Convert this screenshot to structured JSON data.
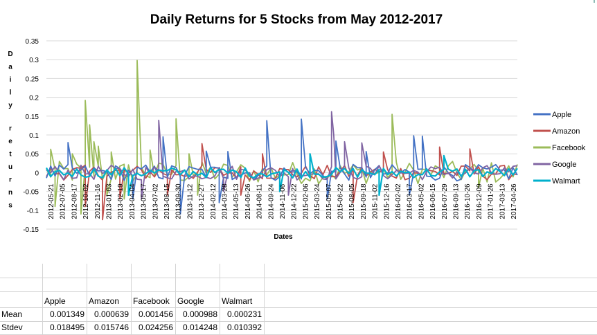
{
  "chart_data": {
    "type": "line",
    "title": "Daily Returns for 5 Stocks from May 2012-2017",
    "xlabel": "Dates",
    "ylabel": "Daily returns",
    "ylim": [
      -0.15,
      0.35
    ],
    "yticks": [
      "0.35",
      "0.3",
      "0.25",
      "0.2",
      "0.15",
      "0.1",
      "0.05",
      "0",
      "-0.05",
      "-0.1",
      "-0.15"
    ],
    "xticks": [
      "2012-05-21",
      "2012-07-05",
      "2012-08-17",
      "2012-10-02",
      "2012-11-16",
      "2013-01-03",
      "2013-02-19",
      "2013-04-04",
      "2013-05-17",
      "2013-07-02",
      "2013-08-15",
      "2013-09-30",
      "2013-11-12",
      "2013-12-27",
      "2014-02-12",
      "2014-03-28",
      "2014-05-13",
      "2014-06-26",
      "2014-08-11",
      "2014-09-24",
      "2014-11-06",
      "2014-12-22",
      "2015-02-06",
      "2015-03-24",
      "2015-05-07",
      "2015-06-22",
      "2015-08-05",
      "2015-09-18",
      "2015-11-02",
      "2015-12-16",
      "2016-02-02",
      "2016-03-17",
      "2016-05-02",
      "2016-06-15",
      "2016-07-29",
      "2016-09-13",
      "2016-10-26",
      "2016-12-09",
      "2017-01-26",
      "2017-03-13",
      "2017-04-26"
    ],
    "legend_position": "right",
    "grid": true,
    "series": [
      {
        "name": "Apple",
        "color": "#4472c4",
        "spikes": [
          [
            5,
            0.08
          ],
          [
            20,
            -0.07
          ],
          [
            27,
            0.095
          ],
          [
            37,
            0.057
          ],
          [
            42,
            0.056
          ],
          [
            51,
            0.138
          ],
          [
            59,
            0.142
          ],
          [
            67,
            0.084
          ],
          [
            74,
            0.056
          ],
          [
            85,
            0.098
          ],
          [
            87,
            0.097
          ],
          [
            31,
            -0.11
          ],
          [
            40,
            -0.08
          ],
          [
            65,
            -0.07
          ],
          [
            84,
            -0.06
          ]
        ]
      },
      {
        "name": "Amazon",
        "color": "#c0504d",
        "spikes": [
          [
            13,
            -0.125
          ],
          [
            17,
            -0.07
          ],
          [
            36,
            0.077
          ],
          [
            50,
            0.05
          ],
          [
            71,
            -0.08
          ],
          [
            78,
            0.055
          ],
          [
            91,
            0.068
          ],
          [
            98,
            0.063
          ],
          [
            9,
            -0.09
          ],
          [
            28,
            -0.06
          ],
          [
            45,
            -0.06
          ]
        ]
      },
      {
        "name": "Facebook",
        "color": "#9bbb59",
        "spikes": [
          [
            1,
            0.062
          ],
          [
            6,
            0.05
          ],
          [
            9,
            0.192
          ],
          [
            10,
            0.127
          ],
          [
            11,
            0.082
          ],
          [
            12,
            0.07
          ],
          [
            15,
            0.055
          ],
          [
            21,
            0.298
          ],
          [
            24,
            0.06
          ],
          [
            30,
            0.143
          ],
          [
            33,
            0.05
          ],
          [
            80,
            0.155
          ],
          [
            2,
            -0.09
          ],
          [
            8,
            -0.11
          ],
          [
            14,
            -0.06
          ],
          [
            18,
            -0.07
          ],
          [
            35,
            -0.06
          ],
          [
            100,
            -0.04
          ]
        ]
      },
      {
        "name": "Google",
        "color": "#8064a2",
        "spikes": [
          [
            26,
            0.139
          ],
          [
            66,
            0.162
          ],
          [
            69,
            0.082
          ],
          [
            73,
            0.079
          ],
          [
            66.5,
            0.1
          ],
          [
            22,
            -0.07
          ],
          [
            41,
            -0.05
          ],
          [
            56,
            -0.06
          ]
        ]
      },
      {
        "name": "Walmart",
        "color": "#00b0cc",
        "spikes": [
          [
            19,
            -0.06
          ],
          [
            54,
            -0.05
          ],
          [
            77,
            -0.06
          ],
          [
            92,
            0.045
          ],
          [
            61,
            0.05
          ]
        ]
      }
    ]
  },
  "legend": [
    "Apple",
    "Amazon",
    "Facebook",
    "Google",
    "Walmart"
  ],
  "table": {
    "headers": [
      "Apple",
      "Amazon",
      "Facebook",
      "Google",
      "Walmart"
    ],
    "rows": [
      {
        "label": "Mean",
        "values": [
          "0.001349",
          "0.000639",
          "0.001456",
          "0.000988",
          "0.000231"
        ]
      },
      {
        "label": "Stdev",
        "values": [
          "0.018495",
          "0.015746",
          "0.024256",
          "0.014248",
          "0.010392"
        ]
      }
    ]
  }
}
